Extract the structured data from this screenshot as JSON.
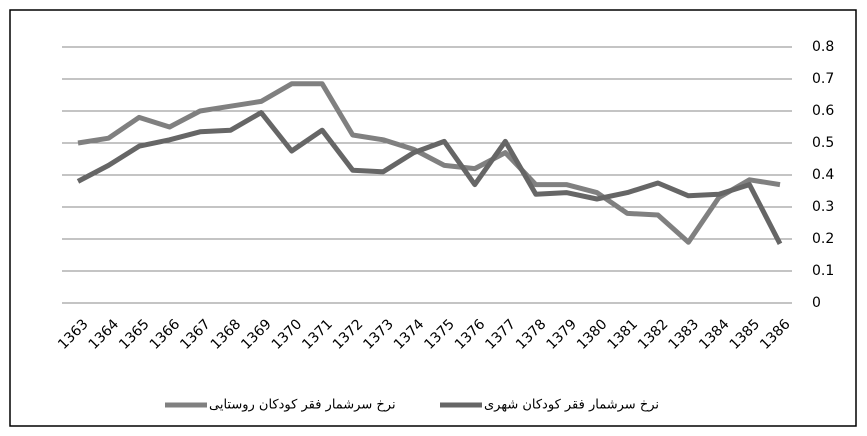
{
  "chart_data": {
    "type": "line",
    "categories": [
      "1363",
      "1364",
      "1365",
      "1366",
      "1367",
      "1368",
      "1369",
      "1370",
      "1371",
      "1372",
      "1373",
      "1374",
      "1375",
      "1376",
      "1377",
      "1378",
      "1379",
      "1380",
      "1381",
      "1382",
      "1383",
      "1384",
      "1385",
      "1386"
    ],
    "series": [
      {
        "name": "نرخ سرشمار فقر کودکان روستایی",
        "color": "#808080",
        "values": [
          0.5,
          0.515,
          0.58,
          0.55,
          0.6,
          0.615,
          0.63,
          0.685,
          0.685,
          0.525,
          0.51,
          0.48,
          0.43,
          0.42,
          0.47,
          0.37,
          0.37,
          0.345,
          0.28,
          0.275,
          0.19,
          0.33,
          0.385,
          0.37
        ]
      },
      {
        "name": "نرخ سرشمار فقر کودکان شهری",
        "color": "#666666",
        "values": [
          0.38,
          0.43,
          0.49,
          0.51,
          0.535,
          0.54,
          0.595,
          0.475,
          0.54,
          0.415,
          0.41,
          0.47,
          0.505,
          0.37,
          0.505,
          0.34,
          0.345,
          0.325,
          0.345,
          0.375,
          0.335,
          0.34,
          0.37,
          0.185
        ]
      }
    ],
    "ylim": [
      0,
      0.8
    ],
    "yticks": [
      0,
      0.1,
      0.2,
      0.3,
      0.4,
      0.5,
      0.6,
      0.7,
      0.8
    ],
    "grid": true
  }
}
